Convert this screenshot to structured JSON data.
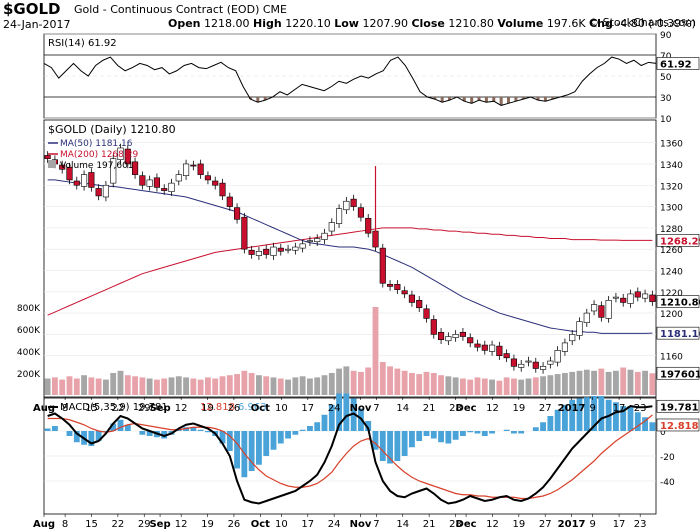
{
  "header": {
    "symbol": "$GOLD",
    "title": "Gold - Continuous Contract (EOD)",
    "exchange": "CME",
    "source": "© StockCharts.com",
    "date": "24-Jan-2017",
    "open_label": "Open",
    "open": "1218.00",
    "high_label": "High",
    "high": "1220.10",
    "low_label": "Low",
    "low": "1207.90",
    "close_label": "Close",
    "close": "1210.80",
    "volume_label": "Volume",
    "volume": "197.6K",
    "chg_label": "Chg",
    "chg": "-4.80 (-0.39%)"
  },
  "colors": {
    "up": "#ffffff",
    "down": "#c8102e",
    "ma50": "#2b2f7a",
    "ma200": "#c8102e",
    "volume": "#a6a6a6",
    "volume_down": "#e8a3aa",
    "macd_hist": "#4aa3d8",
    "signal": "#d8402a"
  },
  "chart_data": [
    {
      "type": "line",
      "name": "RSI",
      "legend": "RSI(14) 61.92",
      "last_value": 61.92,
      "ylim": [
        10,
        90
      ],
      "yticks": [
        90,
        70,
        50,
        30,
        10
      ],
      "y": [
        62,
        58,
        48,
        55,
        62,
        55,
        50,
        60,
        65,
        68,
        60,
        55,
        58,
        62,
        60,
        56,
        58,
        52,
        55,
        60,
        62,
        58,
        57,
        60,
        63,
        58,
        55,
        40,
        28,
        25,
        27,
        30,
        35,
        32,
        37,
        42,
        40,
        38,
        36,
        40,
        45,
        43,
        47,
        50,
        48,
        52,
        55,
        65,
        68,
        60,
        48,
        35,
        30,
        28,
        25,
        27,
        30,
        26,
        24,
        27,
        25,
        26,
        22,
        24,
        26,
        28,
        30,
        27,
        26,
        28,
        30,
        32,
        35,
        45,
        52,
        58,
        62,
        68,
        66,
        62,
        65,
        60,
        63,
        62
      ]
    },
    {
      "type": "candlestick",
      "name": "$GOLD (Daily)",
      "legend": "$GOLD (Daily) 1210.80",
      "ma50_legend": "MA(50) 1181.16",
      "ma200_legend": "MA(200) 1268.29",
      "volume_legend": "Volume 197,601",
      "price_tag": "1210.80",
      "ma200_tag": "1268.29",
      "ma50_tag": "1181.16",
      "volume_tag": "197601",
      "ylim": [
        1140,
        1370
      ],
      "yticks": [
        1360,
        1340,
        1320,
        1300,
        1280,
        1260,
        1240,
        1220,
        1200,
        1180,
        1160
      ],
      "volume_ticks": [
        "800K",
        "600K",
        "400K",
        "200K"
      ],
      "close": [
        1345,
        1340,
        1335,
        1325,
        1320,
        1330,
        1318,
        1310,
        1320,
        1345,
        1355,
        1340,
        1330,
        1320,
        1325,
        1318,
        1315,
        1322,
        1330,
        1340,
        1338,
        1330,
        1325,
        1320,
        1310,
        1300,
        1288,
        1260,
        1255,
        1258,
        1255,
        1262,
        1258,
        1260,
        1262,
        1265,
        1268,
        1270,
        1275,
        1285,
        1298,
        1305,
        1300,
        1290,
        1275,
        1262,
        1228,
        1225,
        1222,
        1218,
        1210,
        1205,
        1195,
        1180,
        1175,
        1178,
        1180,
        1178,
        1172,
        1168,
        1165,
        1170,
        1160,
        1158,
        1150,
        1152,
        1155,
        1148,
        1150,
        1155,
        1165,
        1172,
        1180,
        1192,
        1200,
        1208,
        1196,
        1212,
        1215,
        1210,
        1218,
        1215,
        1218,
        1210.8
      ],
      "ma50": [
        1325,
        1325,
        1324,
        1323,
        1322,
        1322,
        1321,
        1320,
        1319,
        1319,
        1318,
        1317,
        1316,
        1315,
        1314,
        1313,
        1312,
        1311,
        1310,
        1309,
        1307,
        1305,
        1303,
        1301,
        1299,
        1297,
        1295,
        1292,
        1289,
        1286,
        1283,
        1280,
        1277,
        1274,
        1271,
        1268,
        1266,
        1265,
        1264,
        1263,
        1262,
        1262,
        1262,
        1261,
        1260,
        1258,
        1255,
        1252,
        1249,
        1246,
        1243,
        1239,
        1235,
        1231,
        1227,
        1223,
        1219,
        1215,
        1212,
        1209,
        1206,
        1203,
        1200,
        1198,
        1196,
        1194,
        1192,
        1190,
        1188,
        1186,
        1185,
        1184,
        1183,
        1183,
        1182,
        1182,
        1181,
        1181,
        1181,
        1181,
        1181,
        1181,
        1181,
        1181.16
      ],
      "ma200": [
        1198,
        1201,
        1204,
        1207,
        1210,
        1213,
        1216,
        1219,
        1222,
        1225,
        1228,
        1231,
        1234,
        1237,
        1239,
        1241,
        1243,
        1245,
        1247,
        1249,
        1251,
        1253,
        1255,
        1257,
        1258,
        1259,
        1260,
        1261,
        1262,
        1263,
        1264,
        1265,
        1266,
        1267,
        1268,
        1269,
        1270,
        1271,
        1272,
        1273,
        1274,
        1275,
        1276,
        1277,
        1278,
        1279,
        1280,
        1280,
        1280,
        1280,
        1280,
        1279,
        1279,
        1278,
        1278,
        1277,
        1277,
        1276,
        1276,
        1275,
        1275,
        1274,
        1274,
        1273,
        1273,
        1272,
        1272,
        1271,
        1271,
        1270,
        1270,
        1270,
        1269,
        1269,
        1269,
        1269,
        1268.5,
        1268.5,
        1268.5,
        1268.3,
        1268.3,
        1268.3,
        1268.3,
        1268.29
      ],
      "volume": [
        150,
        160,
        140,
        170,
        150,
        180,
        160,
        150,
        140,
        200,
        220,
        180,
        170,
        160,
        150,
        140,
        150,
        160,
        170,
        160,
        150,
        140,
        160,
        150,
        170,
        180,
        190,
        220,
        200,
        180,
        170,
        160,
        150,
        140,
        160,
        170,
        150,
        160,
        180,
        200,
        240,
        260,
        220,
        210,
        250,
        800,
        300,
        260,
        240,
        220,
        200,
        190,
        210,
        200,
        180,
        170,
        160,
        150,
        140,
        160,
        150,
        140,
        130,
        160,
        150,
        140,
        150,
        160,
        170,
        180,
        190,
        200,
        210,
        220,
        230,
        220,
        240,
        210,
        220,
        250,
        230,
        210,
        220,
        197.6
      ]
    },
    {
      "type": "line",
      "name": "MACD",
      "legend_macd": "MACD(5,35,9) 19.781",
      "legend_signal": "12.818",
      "legend_hist": "6.963",
      "macd_tag": "19.781",
      "signal_tag": "12.818",
      "hist_tag": "6.963",
      "ylim": [
        -60,
        20
      ],
      "yticks": [
        0,
        -20,
        -40
      ],
      "macd": [
        12,
        14,
        10,
        5,
        -2,
        -6,
        -10,
        -8,
        -2,
        6,
        12,
        10,
        6,
        2,
        0,
        -2,
        -4,
        -2,
        2,
        5,
        6,
        4,
        2,
        -2,
        -10,
        -20,
        -40,
        -55,
        -57,
        -58,
        -56,
        -54,
        -52,
        -50,
        -48,
        -44,
        -40,
        -35,
        -25,
        -12,
        5,
        12,
        14,
        10,
        2,
        -25,
        -40,
        -48,
        -52,
        -53,
        -50,
        -48,
        -46,
        -50,
        -55,
        -58,
        -57,
        -55,
        -52,
        -54,
        -56,
        -55,
        -53,
        -52,
        -55,
        -56,
        -54,
        -50,
        -45,
        -38,
        -30,
        -22,
        -14,
        -8,
        -2,
        4,
        10,
        12,
        15,
        16,
        20,
        19,
        19,
        19.781
      ],
      "signal": [
        10,
        10,
        10,
        9,
        7,
        5,
        2,
        0,
        -1,
        0,
        3,
        5,
        6,
        5,
        4,
        3,
        2,
        1,
        1,
        2,
        3,
        3,
        3,
        2,
        0,
        -4,
        -10,
        -18,
        -25,
        -31,
        -36,
        -39,
        -42,
        -44,
        -45,
        -45,
        -44,
        -42,
        -38,
        -33,
        -25,
        -18,
        -12,
        -8,
        -6,
        -10,
        -16,
        -22,
        -28,
        -33,
        -37,
        -40,
        -42,
        -44,
        -46,
        -48,
        -50,
        -51,
        -51,
        -52,
        -52,
        -53,
        -53,
        -53,
        -53,
        -54,
        -54,
        -53,
        -52,
        -50,
        -47,
        -43,
        -39,
        -34,
        -29,
        -24,
        -18,
        -13,
        -8,
        -4,
        0,
        4,
        8,
        12.818
      ]
    }
  ],
  "x_axis": {
    "labels": [
      {
        "text": "Aug",
        "i": 0,
        "bold": true
      },
      {
        "text": "8",
        "i": 4,
        "bold": false
      },
      {
        "text": "15",
        "i": 9,
        "bold": false
      },
      {
        "text": "22",
        "i": 14,
        "bold": false
      },
      {
        "text": "29",
        "i": 19,
        "bold": false
      },
      {
        "text": "Sep",
        "i": 22,
        "bold": true
      },
      {
        "text": "12",
        "i": 26,
        "bold": false
      },
      {
        "text": "19",
        "i": 31,
        "bold": false
      },
      {
        "text": "26",
        "i": 36,
        "bold": false
      },
      {
        "text": "Oct",
        "i": 41,
        "bold": true
      },
      {
        "text": "10",
        "i": 45,
        "bold": false
      },
      {
        "text": "17",
        "i": 50,
        "bold": false
      },
      {
        "text": "24",
        "i": 55,
        "bold": false
      },
      {
        "text": "Nov",
        "i": 60,
        "bold": true
      },
      {
        "text": "7",
        "i": 63,
        "bold": false
      },
      {
        "text": "14",
        "i": 68,
        "bold": false
      },
      {
        "text": "21",
        "i": 73,
        "bold": false
      },
      {
        "text": "28",
        "i": 78,
        "bold": false
      },
      {
        "text": "Dec",
        "i": 80,
        "bold": true
      },
      {
        "text": "12",
        "i": 85,
        "bold": false
      },
      {
        "text": "19",
        "i": 90,
        "bold": false
      },
      {
        "text": "27",
        "i": 95,
        "bold": false
      },
      {
        "text": "2017",
        "i": 100,
        "bold": true
      },
      {
        "text": "9",
        "i": 104,
        "bold": false
      },
      {
        "text": "17",
        "i": 109,
        "bold": false
      },
      {
        "text": "23",
        "i": 113,
        "bold": false
      }
    ]
  }
}
